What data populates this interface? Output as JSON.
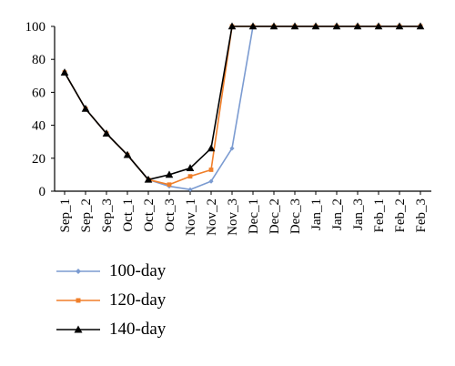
{
  "chart_data": {
    "type": "line",
    "categories": [
      "Sep_1",
      "Sep_2",
      "Sep_3",
      "Oct_1",
      "Oct_2",
      "Oct_3",
      "Nov_1",
      "Nov_2",
      "Nov_3",
      "Dec_1",
      "Dec_2",
      "Dec_3",
      "Jan_1",
      "Jan_2",
      "Jan_3",
      "Feb_1",
      "Feb_2",
      "Feb_3"
    ],
    "ylim": [
      0,
      100
    ],
    "yticks": [
      0,
      20,
      40,
      60,
      80,
      100
    ],
    "title": "",
    "xlabel": "",
    "ylabel": "",
    "legend_position": "bottom-left",
    "series": [
      {
        "name": "100-day",
        "color": "#7b9bd1",
        "marker": "diamond",
        "values": [
          72,
          50,
          35,
          22,
          7,
          3,
          1,
          6,
          26,
          100,
          100,
          100,
          100,
          100,
          100,
          100,
          100,
          100
        ]
      },
      {
        "name": "120-day",
        "color": "#f07f2a",
        "marker": "square",
        "values": [
          72,
          50,
          35,
          22,
          7,
          4,
          9,
          13,
          100,
          100,
          100,
          100,
          100,
          100,
          100,
          100,
          100,
          100
        ]
      },
      {
        "name": "140-day",
        "color": "#000000",
        "marker": "triangle",
        "values": [
          72,
          50,
          35,
          22,
          7,
          10,
          14,
          26,
          100,
          100,
          100,
          100,
          100,
          100,
          100,
          100,
          100,
          100
        ]
      }
    ]
  }
}
